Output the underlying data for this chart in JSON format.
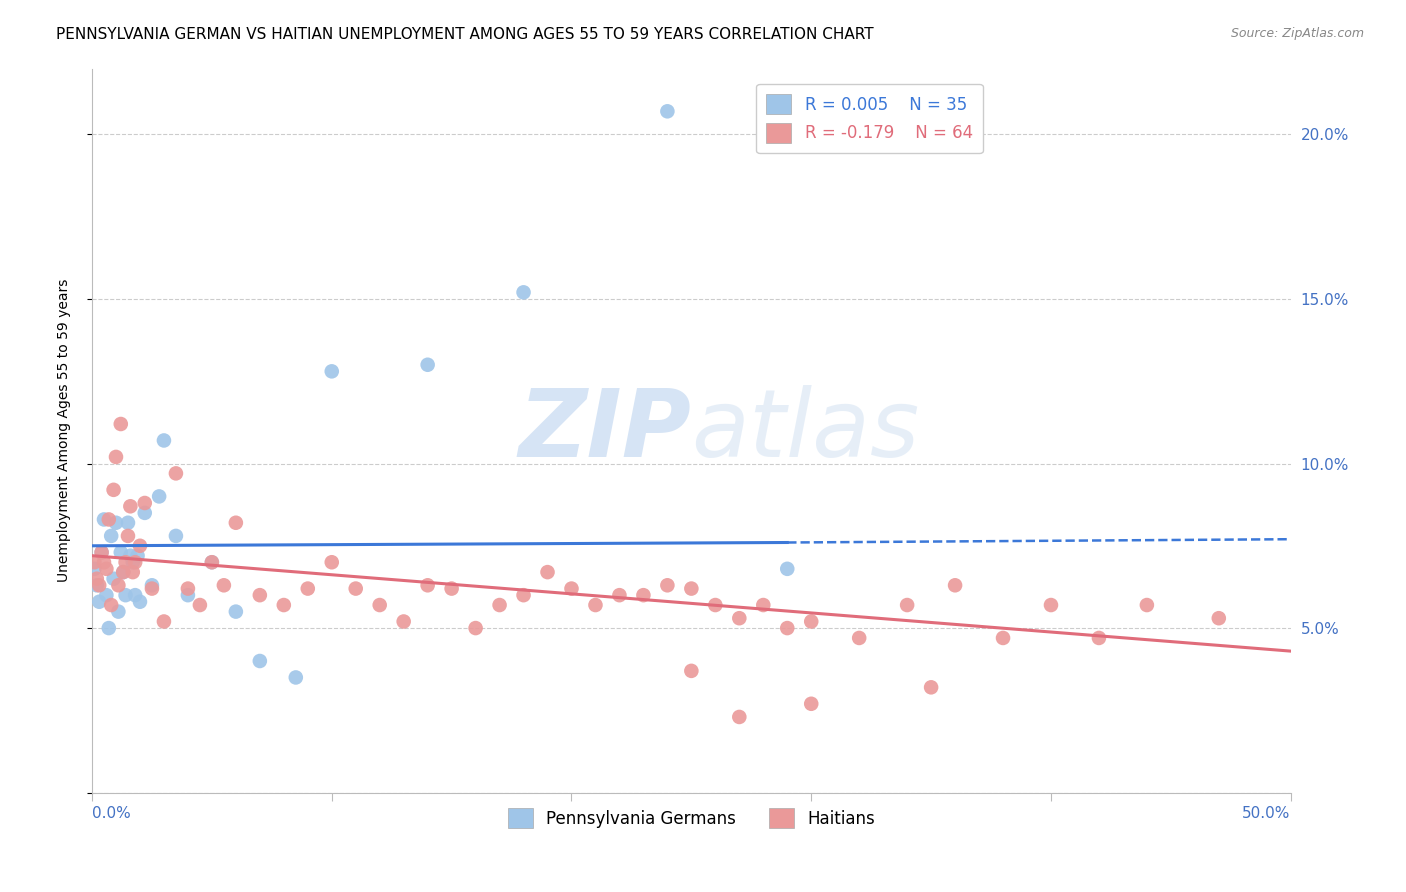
{
  "title": "PENNSYLVANIA GERMAN VS HAITIAN UNEMPLOYMENT AMONG AGES 55 TO 59 YEARS CORRELATION CHART",
  "source": "Source: ZipAtlas.com",
  "ylabel": "Unemployment Among Ages 55 to 59 years",
  "xlim": [
    0.0,
    0.5
  ],
  "ylim": [
    0.0,
    0.22
  ],
  "xticks": [
    0.0,
    0.1,
    0.2,
    0.3,
    0.4,
    0.5
  ],
  "yticks": [
    0.0,
    0.05,
    0.1,
    0.15,
    0.2
  ],
  "ytick_right_labels": [
    "",
    "5.0%",
    "10.0%",
    "15.0%",
    "20.0%"
  ],
  "xtick_labels_left": "0.0%",
  "xtick_labels_right": "50.0%",
  "german_color": "#9fc5e8",
  "haitian_color": "#ea9999",
  "german_line_color": "#3c78d8",
  "haitian_line_color": "#e06c7a",
  "background_color": "#ffffff",
  "watermark_color": "#d6e4f5",
  "legend_R_german": "R = 0.005",
  "legend_N_german": "N = 35",
  "legend_R_haitian": "R = -0.179",
  "legend_N_haitian": "N = 64",
  "german_x": [
    0.001,
    0.002,
    0.003,
    0.004,
    0.005,
    0.006,
    0.007,
    0.008,
    0.009,
    0.01,
    0.011,
    0.012,
    0.013,
    0.014,
    0.015,
    0.016,
    0.017,
    0.018,
    0.019,
    0.02,
    0.022,
    0.025,
    0.028,
    0.03,
    0.035,
    0.04,
    0.05,
    0.06,
    0.07,
    0.085,
    0.1,
    0.14,
    0.18,
    0.24,
    0.29
  ],
  "german_y": [
    0.068,
    0.063,
    0.058,
    0.073,
    0.083,
    0.06,
    0.05,
    0.078,
    0.065,
    0.082,
    0.055,
    0.073,
    0.067,
    0.06,
    0.082,
    0.072,
    0.07,
    0.06,
    0.072,
    0.058,
    0.085,
    0.063,
    0.09,
    0.107,
    0.078,
    0.06,
    0.07,
    0.055,
    0.04,
    0.035,
    0.128,
    0.13,
    0.152,
    0.207,
    0.068
  ],
  "haitian_x": [
    0.001,
    0.002,
    0.003,
    0.004,
    0.005,
    0.006,
    0.007,
    0.008,
    0.009,
    0.01,
    0.011,
    0.012,
    0.013,
    0.014,
    0.015,
    0.016,
    0.017,
    0.018,
    0.02,
    0.022,
    0.025,
    0.03,
    0.035,
    0.04,
    0.045,
    0.05,
    0.055,
    0.06,
    0.07,
    0.08,
    0.09,
    0.1,
    0.11,
    0.12,
    0.13,
    0.14,
    0.15,
    0.16,
    0.17,
    0.18,
    0.19,
    0.2,
    0.21,
    0.22,
    0.23,
    0.24,
    0.25,
    0.26,
    0.27,
    0.28,
    0.29,
    0.3,
    0.32,
    0.34,
    0.36,
    0.38,
    0.4,
    0.42,
    0.44,
    0.47,
    0.3,
    0.25,
    0.35,
    0.27
  ],
  "haitian_y": [
    0.07,
    0.065,
    0.063,
    0.073,
    0.07,
    0.068,
    0.083,
    0.057,
    0.092,
    0.102,
    0.063,
    0.112,
    0.067,
    0.07,
    0.078,
    0.087,
    0.067,
    0.07,
    0.075,
    0.088,
    0.062,
    0.052,
    0.097,
    0.062,
    0.057,
    0.07,
    0.063,
    0.082,
    0.06,
    0.057,
    0.062,
    0.07,
    0.062,
    0.057,
    0.052,
    0.063,
    0.062,
    0.05,
    0.057,
    0.06,
    0.067,
    0.062,
    0.057,
    0.06,
    0.06,
    0.063,
    0.062,
    0.057,
    0.053,
    0.057,
    0.05,
    0.052,
    0.047,
    0.057,
    0.063,
    0.047,
    0.057,
    0.047,
    0.057,
    0.053,
    0.027,
    0.037,
    0.032,
    0.023
  ],
  "german_trend_x0": 0.0,
  "german_trend_x1": 0.29,
  "german_trend_x2": 0.5,
  "german_trend_y0": 0.075,
  "german_trend_y1": 0.076,
  "german_trend_y2": 0.077,
  "haitian_trend_x0": 0.0,
  "haitian_trend_x1": 0.5,
  "haitian_trend_y0": 0.072,
  "haitian_trend_y1": 0.043,
  "grid_color": "#cccccc",
  "title_fontsize": 11,
  "axis_label_fontsize": 10,
  "tick_fontsize": 11,
  "legend_fontsize": 12,
  "scatter_size": 110
}
